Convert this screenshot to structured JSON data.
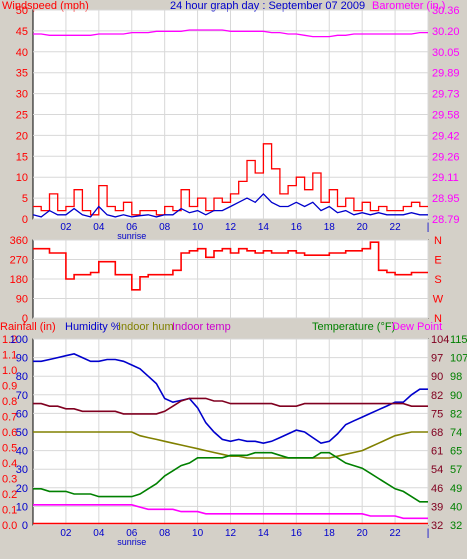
{
  "header": {
    "windspeed_label": "Windspeed (mph)",
    "title": "24 hour graph day : September 07 2009",
    "barometer_label": "Barometer (in.)"
  },
  "colors": {
    "red": "#ff0000",
    "blue": "#0000cc",
    "magenta": "#ff00ff",
    "olive": "#808000",
    "darkred": "#800020",
    "green": "#008000",
    "purple": "#cc00cc",
    "bg": "#d4d0c8",
    "panel": "#ffffff"
  },
  "x_axis": {
    "ticks": [
      "02",
      "04",
      "06",
      "08",
      "10",
      "12",
      "14",
      "16",
      "18",
      "20",
      "22",
      "|"
    ],
    "sunrise_label": "sunrise"
  },
  "chart_data": [
    {
      "type": "line",
      "title": "24 hour graph day : September 07 2009",
      "x_hours": [
        0,
        0.5,
        1,
        1.5,
        2,
        2.5,
        3,
        3.5,
        4,
        4.5,
        5,
        5.5,
        6,
        6.5,
        7,
        7.5,
        8,
        8.5,
        9,
        9.5,
        10,
        10.5,
        11,
        11.5,
        12,
        12.5,
        13,
        13.5,
        14,
        14.5,
        15,
        15.5,
        16,
        16.5,
        17,
        17.5,
        18,
        18.5,
        19,
        19.5,
        20,
        20.5,
        21,
        21.5,
        22,
        22.5,
        23,
        23.5
      ],
      "left_axis": {
        "label": "Windspeed (mph)",
        "ticks": [
          "0",
          "5",
          "10",
          "15",
          "20",
          "25",
          "30",
          "35",
          "40",
          "45",
          "50"
        ],
        "ylim": [
          0,
          50
        ]
      },
      "right_axis": {
        "label": "Barometer (in.)",
        "ticks": [
          "28.79",
          "28.95",
          "29.11",
          "29.26",
          "29.42",
          "29.58",
          "29.73",
          "29.89",
          "30.05",
          "30.20",
          "30.36"
        ],
        "ylim": [
          28.79,
          30.36
        ]
      },
      "series": [
        {
          "name": "Windspeed (mph)",
          "color": "#ff0000",
          "style": "gust",
          "values": [
            3,
            2,
            6,
            2,
            3,
            7,
            2,
            1,
            8,
            3,
            2,
            4,
            1,
            2,
            2,
            1,
            3,
            2,
            7,
            3,
            5,
            2,
            5,
            4,
            6,
            9,
            14,
            11,
            18,
            12,
            6,
            8,
            10,
            7,
            11,
            4,
            7,
            3,
            5,
            2,
            4,
            2,
            3,
            2,
            2,
            3,
            4,
            3
          ]
        },
        {
          "values": [
            1,
            0.5,
            2,
            1,
            1,
            2.5,
            1,
            0.5,
            3,
            1,
            0.5,
            1,
            0.5,
            0.8,
            1,
            0.5,
            1,
            1,
            2.5,
            1.5,
            2,
            1,
            2,
            2,
            3,
            4,
            5,
            4,
            6,
            4,
            3,
            3,
            4,
            3,
            4,
            2,
            3,
            1.5,
            2,
            1,
            1.5,
            1,
            1.5,
            1,
            1,
            1,
            1.5,
            1
          ],
          "color": "#0000cc"
        },
        {
          "name": "Barometer (in.)",
          "color": "#ff00ff",
          "axis": "right",
          "values": [
            30.18,
            30.18,
            30.17,
            30.17,
            30.17,
            30.17,
            30.17,
            30.17,
            30.18,
            30.18,
            30.18,
            30.18,
            30.19,
            30.19,
            30.19,
            30.2,
            30.2,
            30.2,
            30.2,
            30.21,
            30.21,
            30.21,
            30.21,
            30.21,
            30.2,
            30.2,
            30.2,
            30.2,
            30.2,
            30.19,
            30.19,
            30.18,
            30.18,
            30.17,
            30.16,
            30.16,
            30.16,
            30.17,
            30.17,
            30.18,
            30.18,
            30.18,
            30.18,
            30.18,
            30.18,
            30.18,
            30.18,
            30.19
          ]
        }
      ]
    },
    {
      "type": "line",
      "left_axis": {
        "ticks": [
          "0",
          "90",
          "180",
          "270",
          "360"
        ],
        "ylim": [
          0,
          360
        ]
      },
      "right_axis": {
        "ticks": [
          "N",
          "W",
          "S",
          "E",
          "N"
        ]
      },
      "series": [
        {
          "name": "Wind direction",
          "color": "#ff0000",
          "values": [
            320,
            320,
            300,
            300,
            180,
            200,
            200,
            210,
            260,
            260,
            200,
            200,
            130,
            190,
            200,
            200,
            200,
            220,
            300,
            310,
            320,
            280,
            310,
            320,
            300,
            320,
            310,
            300,
            310,
            300,
            300,
            310,
            300,
            290,
            290,
            290,
            300,
            300,
            310,
            310,
            320,
            350,
            220,
            210,
            200,
            200,
            210,
            210
          ]
        }
      ]
    },
    {
      "type": "line",
      "axes": [
        {
          "label": "Rainfall (in)",
          "ticks": [
            "0.0",
            "0.1",
            "0.2",
            "0.3",
            "0.4",
            "0.5",
            "0.6",
            "0.7",
            "0.8",
            "0.9",
            "1.0",
            "1.1",
            "1.2"
          ],
          "ylim": [
            0,
            1.2
          ]
        },
        {
          "label": "Humidity %",
          "ticks": [
            "0",
            "10",
            "20",
            "30",
            "40",
            "50",
            "60",
            "70",
            "80",
            "90",
            "100"
          ],
          "ylim": [
            0,
            100
          ]
        },
        {
          "label": "Temperature (°F)",
          "ticks": [
            "32",
            "39",
            "46",
            "54",
            "61",
            "68",
            "75",
            "82",
            "90",
            "97",
            "104"
          ],
          "ylim": [
            32,
            104
          ]
        },
        {
          "label": "Dew Point",
          "ticks": [
            "32",
            "40",
            "49",
            "57",
            "65",
            "74",
            "82",
            "90",
            "98",
            "107",
            "115"
          ],
          "ylim": [
            32,
            115
          ]
        }
      ],
      "legend": [
        "Rainfall (in)",
        "Humidity %",
        "Indoor hum",
        "Indoor temp",
        "Temperature (°F)",
        "Dew Point"
      ],
      "series": [
        {
          "name": "Rainfall (in)",
          "color": "#ff0000",
          "axis": "Rainfall (in)",
          "values": [
            0.01,
            0.01,
            0.01,
            0.01,
            0.01,
            0.01,
            0.01,
            0.01,
            0.01,
            0.01,
            0.01,
            0.01,
            0.01,
            0.01,
            0.01,
            0.01,
            0.01,
            0.01,
            0.01,
            0.01,
            0.01,
            0.01,
            0.01,
            0.01,
            0.01,
            0.01,
            0.01,
            0.01,
            0.01,
            0.01,
            0.01,
            0.01,
            0.01,
            0.01,
            0.01,
            0.01,
            0.01,
            0.01,
            0.01,
            0.01,
            0.01,
            0.01,
            0.01,
            0.01,
            0.01,
            0.01,
            0.01,
            0.01
          ]
        },
        {
          "name": "Humidity %",
          "color": "#0000cc",
          "axis": "Humidity %",
          "values": [
            88,
            88,
            89,
            90,
            91,
            92,
            90,
            88,
            88,
            89,
            89,
            88,
            86,
            84,
            80,
            76,
            68,
            66,
            67,
            68,
            63,
            55,
            50,
            46,
            45,
            46,
            45,
            45,
            44,
            45,
            47,
            49,
            51,
            50,
            47,
            44,
            45,
            49,
            54,
            56,
            58,
            60,
            62,
            64,
            66,
            66,
            70,
            73
          ]
        },
        {
          "name": "Indoor hum",
          "color": "#808000",
          "axis": "Humidity %",
          "values": [
            50,
            50,
            50,
            50,
            50,
            50,
            50,
            50,
            50,
            50,
            50,
            50,
            50,
            48,
            47,
            46,
            45,
            44,
            43,
            42,
            41,
            40,
            39,
            38,
            37,
            37,
            36,
            36,
            36,
            36,
            36,
            36,
            36,
            36,
            36,
            36,
            36,
            37,
            38,
            39,
            40,
            42,
            44,
            46,
            48,
            49,
            50,
            50
          ]
        },
        {
          "name": "Indoor temp",
          "color": "#800020",
          "axis": "Temperature (°F)",
          "values": [
            79,
            79,
            78,
            78,
            77,
            77,
            76,
            76,
            76,
            76,
            76,
            75,
            75,
            75,
            75,
            75,
            76,
            78,
            80,
            81,
            81,
            81,
            80,
            80,
            79,
            79,
            79,
            79,
            79,
            79,
            78,
            78,
            78,
            79,
            79,
            79,
            79,
            79,
            79,
            79,
            79,
            79,
            79,
            79,
            79,
            79,
            78,
            78
          ]
        },
        {
          "name": "Temperature (°F)",
          "color": "#008000",
          "axis": "Temperature (°F)",
          "values": [
            46,
            46,
            45,
            45,
            45,
            44,
            44,
            44,
            43,
            43,
            43,
            43,
            43,
            44,
            46,
            48,
            51,
            53,
            55,
            56,
            58,
            58,
            58,
            58,
            59,
            59,
            59,
            60,
            60,
            60,
            59,
            58,
            58,
            58,
            58,
            60,
            60,
            58,
            56,
            55,
            54,
            52,
            50,
            48,
            46,
            45,
            43,
            41
          ]
        },
        {
          "name": "Dew Point",
          "color": "#ff00ff",
          "axis": "Dew Point",
          "values": [
            41,
            41,
            41,
            41,
            41,
            41,
            41,
            41,
            41,
            41,
            41,
            41,
            41,
            40,
            39,
            39,
            39,
            39,
            38,
            38,
            38,
            37,
            37,
            37,
            37,
            37,
            37,
            37,
            37,
            37,
            37,
            37,
            37,
            37,
            37,
            37,
            37,
            37,
            37,
            37,
            37,
            36,
            36,
            36,
            36,
            35,
            35,
            35
          ]
        }
      ]
    }
  ]
}
